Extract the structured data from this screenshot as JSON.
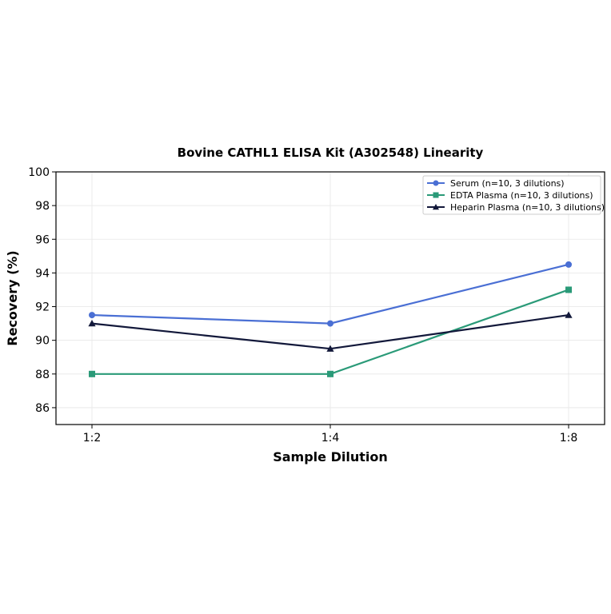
{
  "chart_data": {
    "type": "line",
    "title": "Bovine CATHL1 ELISA Kit (A302548) Linearity",
    "xlabel": "Sample Dilution",
    "ylabel": "Recovery (%)",
    "categories": [
      "1:2",
      "1:4",
      "1:8"
    ],
    "ylim": [
      85,
      100
    ],
    "yticks": [
      86,
      88,
      90,
      92,
      94,
      96,
      98,
      100
    ],
    "grid": true,
    "legend_position": "top-right",
    "series": [
      {
        "name": "Serum (n=10, 3 dilutions)",
        "values": [
          91.5,
          91.0,
          94.5
        ],
        "color": "#4a6fd4",
        "marker": "circle"
      },
      {
        "name": "EDTA Plasma (n=10, 3 dilutions)",
        "values": [
          88.0,
          88.0,
          93.0
        ],
        "color": "#2a9a78",
        "marker": "square"
      },
      {
        "name": "Heparin Plasma (n=10, 3 dilutions)",
        "values": [
          91.0,
          89.5,
          91.5
        ],
        "color": "#12183a",
        "marker": "triangle"
      }
    ]
  }
}
